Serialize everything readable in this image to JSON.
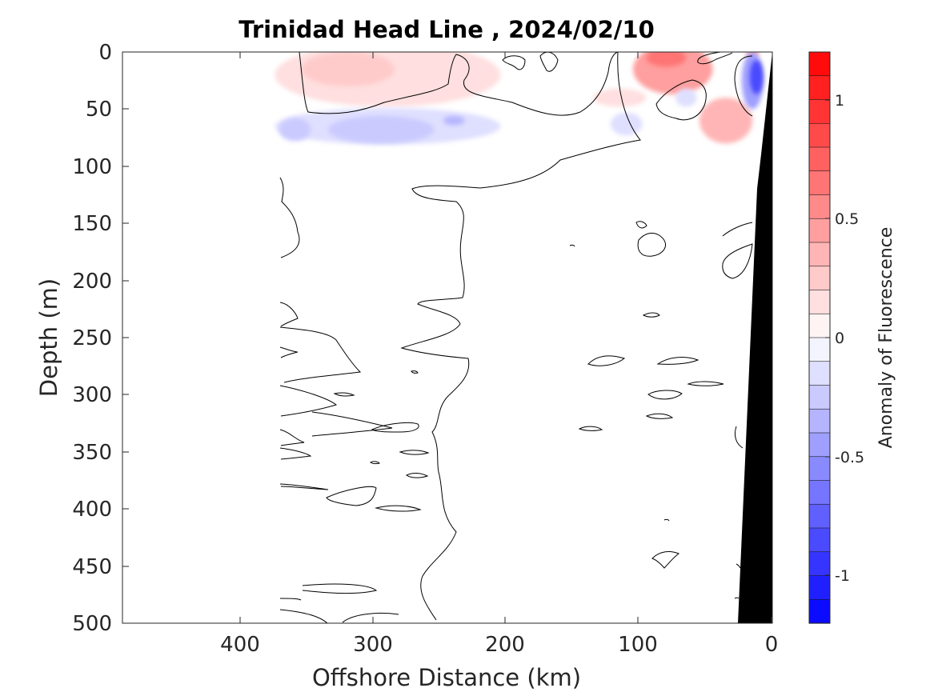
{
  "chart_data": {
    "type": "contour",
    "title": "Trinidad Head Line , 2024/02/10",
    "xlabel": "Offshore Distance (km)",
    "ylabel": "Depth (m)",
    "xlim": [
      490,
      0
    ],
    "ylim": [
      0,
      500
    ],
    "x_reversed": true,
    "y_reversed": true,
    "x_ticks": [
      400,
      300,
      200,
      100,
      0
    ],
    "y_ticks": [
      0,
      50,
      100,
      150,
      200,
      250,
      300,
      350,
      400,
      450,
      500
    ],
    "colorbar": {
      "label": "Anomaly of Fluorescence",
      "range": [
        -1.2,
        1.2
      ],
      "levels": 24,
      "ticks": [
        1,
        0.5,
        0,
        -0.5,
        -1
      ],
      "colormap": "blue-white-red",
      "color_negative": "#0000ff",
      "color_zero": "#ffffff",
      "color_positive": "#ff0000"
    },
    "data_extent_km": [
      0,
      370
    ],
    "anomaly_patches": [
      {
        "x": 290,
        "y": 20,
        "rx": 85,
        "ry": 28,
        "value": 0.15
      },
      {
        "x": 320,
        "y": 15,
        "rx": 35,
        "ry": 15,
        "value": 0.25
      },
      {
        "x": 75,
        "y": 15,
        "rx": 30,
        "ry": 22,
        "value": 0.45
      },
      {
        "x": 80,
        "y": 5,
        "rx": 15,
        "ry": 8,
        "value": 0.65
      },
      {
        "x": 35,
        "y": 60,
        "rx": 20,
        "ry": 20,
        "value": 0.35
      },
      {
        "x": 115,
        "y": 40,
        "rx": 20,
        "ry": 8,
        "value": 0.1
      },
      {
        "x": 15,
        "y": 2,
        "rx": 5,
        "ry": 2,
        "value": 0.6
      },
      {
        "x": 290,
        "y": 65,
        "rx": 85,
        "ry": 16,
        "value": -0.2
      },
      {
        "x": 295,
        "y": 68,
        "rx": 40,
        "ry": 12,
        "value": -0.3
      },
      {
        "x": 360,
        "y": 68,
        "rx": 12,
        "ry": 10,
        "value": -0.3
      },
      {
        "x": 240,
        "y": 60,
        "rx": 8,
        "ry": 4,
        "value": -0.35
      },
      {
        "x": 110,
        "y": 63,
        "rx": 12,
        "ry": 10,
        "value": -0.15
      },
      {
        "x": 65,
        "y": 40,
        "rx": 8,
        "ry": 8,
        "value": -0.2
      },
      {
        "x": 15,
        "y": 25,
        "rx": 8,
        "ry": 25,
        "value": -0.45
      },
      {
        "x": 12,
        "y": 22,
        "rx": 5,
        "ry": 15,
        "value": -0.8
      }
    ],
    "bathymetry": [
      [
        25,
        500
      ],
      [
        14,
        120
      ],
      [
        10,
        90
      ],
      [
        0,
        0
      ],
      [
        0,
        500
      ]
    ]
  }
}
